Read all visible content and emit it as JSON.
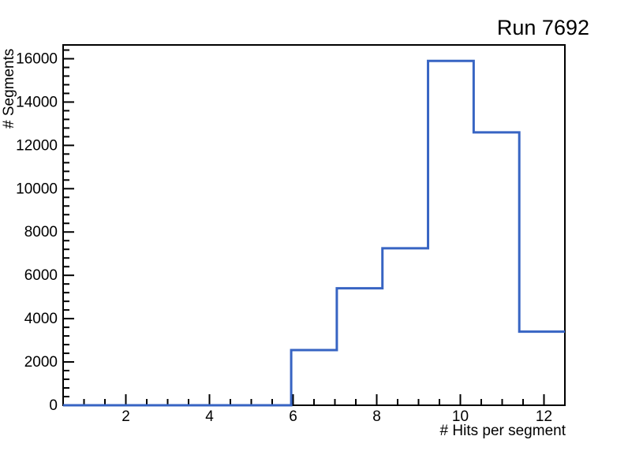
{
  "page": {
    "background": "#ffffff"
  },
  "chart_data": {
    "type": "histogram",
    "title": "Run 7692",
    "xlabel": "# Hits per segment",
    "ylabel": "# Segments",
    "xlim": [
      0.5,
      12.5
    ],
    "ylim": [
      0,
      16637
    ],
    "bins": 11,
    "bin_edges": [
      0.5,
      1.5909,
      2.6818,
      3.7727,
      4.8636,
      5.9545,
      7.0455,
      8.1364,
      9.2273,
      10.3182,
      11.4091,
      12.5
    ],
    "counts": [
      0,
      0,
      0,
      0,
      0,
      2550,
      5400,
      7250,
      15900,
      12600,
      3400
    ],
    "x_major_ticks": [
      2,
      4,
      6,
      8,
      10,
      12
    ],
    "x_minor_step": 0.5,
    "y_major_ticks": [
      0,
      2000,
      4000,
      6000,
      8000,
      10000,
      12000,
      14000,
      16000
    ],
    "y_minor_step": 400,
    "grid": false,
    "legend": null,
    "line_color": "#3764c3",
    "frame_color": "#000000",
    "tick_label_color": "#000000"
  }
}
